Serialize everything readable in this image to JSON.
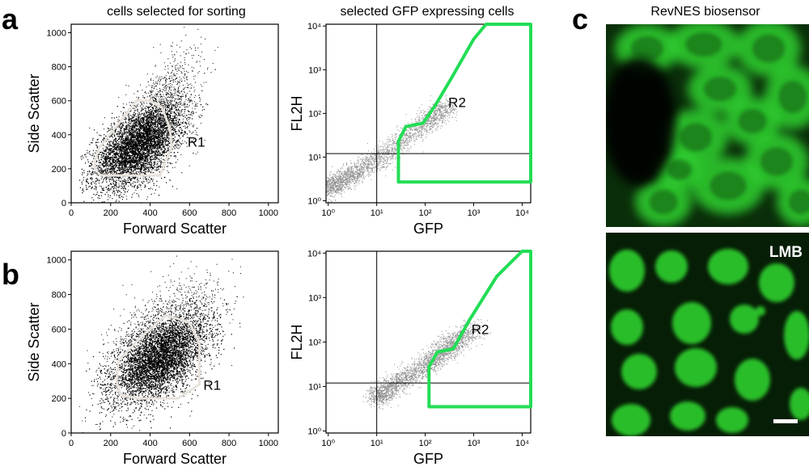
{
  "panel_letters": {
    "a": "a",
    "b": "b",
    "c": "c"
  },
  "column_titles": {
    "scatter": "cells selected for sorting",
    "gfp": "selected GFP expressing cells",
    "micro": "RevNES biosensor"
  },
  "micro_label": "LMB",
  "colors": {
    "scatter_dots": "#000000",
    "gate_r1": "#e8e2dc",
    "gfp_dots": "#909090",
    "gate_r2": "#22dd55",
    "micro_bg_top": "#0a2e0a",
    "micro_cell": "#2fcf2f",
    "micro_bg_bottom": "#061e06",
    "scale_bar": "#ffffff"
  },
  "chart_data": [
    {
      "id": "a-scatter",
      "type": "scatter",
      "xlabel": "Forward Scatter",
      "ylabel": "Side Scatter",
      "xlim": [
        0,
        1050
      ],
      "ylim": [
        0,
        1050
      ],
      "xticks": [
        "0",
        "200",
        "400",
        "600",
        "800",
        "1000"
      ],
      "yticks": [
        "0",
        "200",
        "400",
        "600",
        "800",
        "1000"
      ],
      "gate": {
        "name": "R1",
        "label_at": [
          590,
          330
        ],
        "polygon": [
          [
            120,
            200
          ],
          [
            150,
            160
          ],
          [
            450,
            160
          ],
          [
            510,
            330
          ],
          [
            500,
            440
          ],
          [
            460,
            560
          ],
          [
            400,
            600
          ],
          [
            330,
            600
          ],
          [
            250,
            480
          ],
          [
            140,
            320
          ],
          [
            120,
            250
          ]
        ]
      },
      "population": {
        "center": [
          330,
          330
        ],
        "spread": [
          110,
          120
        ],
        "cloud_center": [
          430,
          480
        ],
        "cloud_spread": [
          150,
          230
        ]
      }
    },
    {
      "id": "a-gfp",
      "type": "scatter",
      "xlabel": "GFP",
      "ylabel": "FL2H",
      "xscale": "log",
      "yscale": "log",
      "xlim": [
        0.9,
        15000
      ],
      "ylim": [
        0.9,
        11000
      ],
      "xticks": [
        "10⁰",
        "10¹",
        "10²",
        "10³",
        "10⁴"
      ],
      "yticks": [
        "10⁰",
        "10¹",
        "10²",
        "10³",
        "10⁴"
      ],
      "quadrant": {
        "x": 10,
        "y": 12
      },
      "gate": {
        "name": "R2",
        "label_at": [
          300,
          140
        ],
        "polygon": [
          [
            28,
            2.7
          ],
          [
            28,
            23
          ],
          [
            40,
            50
          ],
          [
            90,
            60
          ],
          [
            160,
            150
          ],
          [
            350,
            650
          ],
          [
            1000,
            5000
          ],
          [
            1800,
            11000
          ],
          [
            15000,
            11000
          ],
          [
            15000,
            2.7
          ]
        ]
      },
      "population": {
        "trend": [
          [
            1,
            2
          ],
          [
            10,
            9
          ],
          [
            100,
            60
          ],
          [
            300,
            150
          ]
        ]
      }
    },
    {
      "id": "b-scatter",
      "type": "scatter",
      "xlabel": "Forward Scatter",
      "ylabel": "Side Scatter",
      "xlim": [
        0,
        1050
      ],
      "ylim": [
        0,
        1050
      ],
      "xticks": [
        "0",
        "200",
        "400",
        "600",
        "800",
        "1000"
      ],
      "yticks": [
        "0",
        "200",
        "400",
        "600",
        "800",
        "1000"
      ],
      "gate": {
        "name": "R1",
        "label_at": [
          670,
          250
        ],
        "polygon": [
          [
            250,
            220
          ],
          [
            340,
            200
          ],
          [
            540,
            200
          ],
          [
            650,
            280
          ],
          [
            650,
            520
          ],
          [
            600,
            640
          ],
          [
            480,
            680
          ],
          [
            360,
            560
          ],
          [
            240,
            420
          ],
          [
            230,
            300
          ]
        ]
      },
      "population": {
        "center": [
          450,
          430
        ],
        "spread": [
          120,
          130
        ],
        "cloud_center": [
          450,
          520
        ],
        "cloud_spread": [
          210,
          230
        ]
      }
    },
    {
      "id": "b-gfp",
      "type": "scatter",
      "xlabel": "GFP",
      "ylabel": "FL2H",
      "xscale": "log",
      "yscale": "log",
      "xlim": [
        0.9,
        15000
      ],
      "ylim": [
        0.9,
        11000
      ],
      "xticks": [
        "10⁰",
        "10¹",
        "10²",
        "10³",
        "10⁴"
      ],
      "yticks": [
        "10⁰",
        "10¹",
        "10²",
        "10³",
        "10⁴"
      ],
      "quadrant": {
        "x": 10,
        "y": 12
      },
      "gate": {
        "name": "R2",
        "label_at": [
          900,
          150
        ],
        "polygon": [
          [
            120,
            3.5
          ],
          [
            120,
            28
          ],
          [
            180,
            60
          ],
          [
            380,
            70
          ],
          [
            800,
            300
          ],
          [
            3000,
            3000
          ],
          [
            10000,
            11000
          ],
          [
            15000,
            11000
          ],
          [
            15000,
            3.5
          ]
        ]
      },
      "population": {
        "trend": [
          [
            10,
            6
          ],
          [
            100,
            30
          ],
          [
            300,
            80
          ],
          [
            1000,
            200
          ]
        ]
      }
    }
  ]
}
